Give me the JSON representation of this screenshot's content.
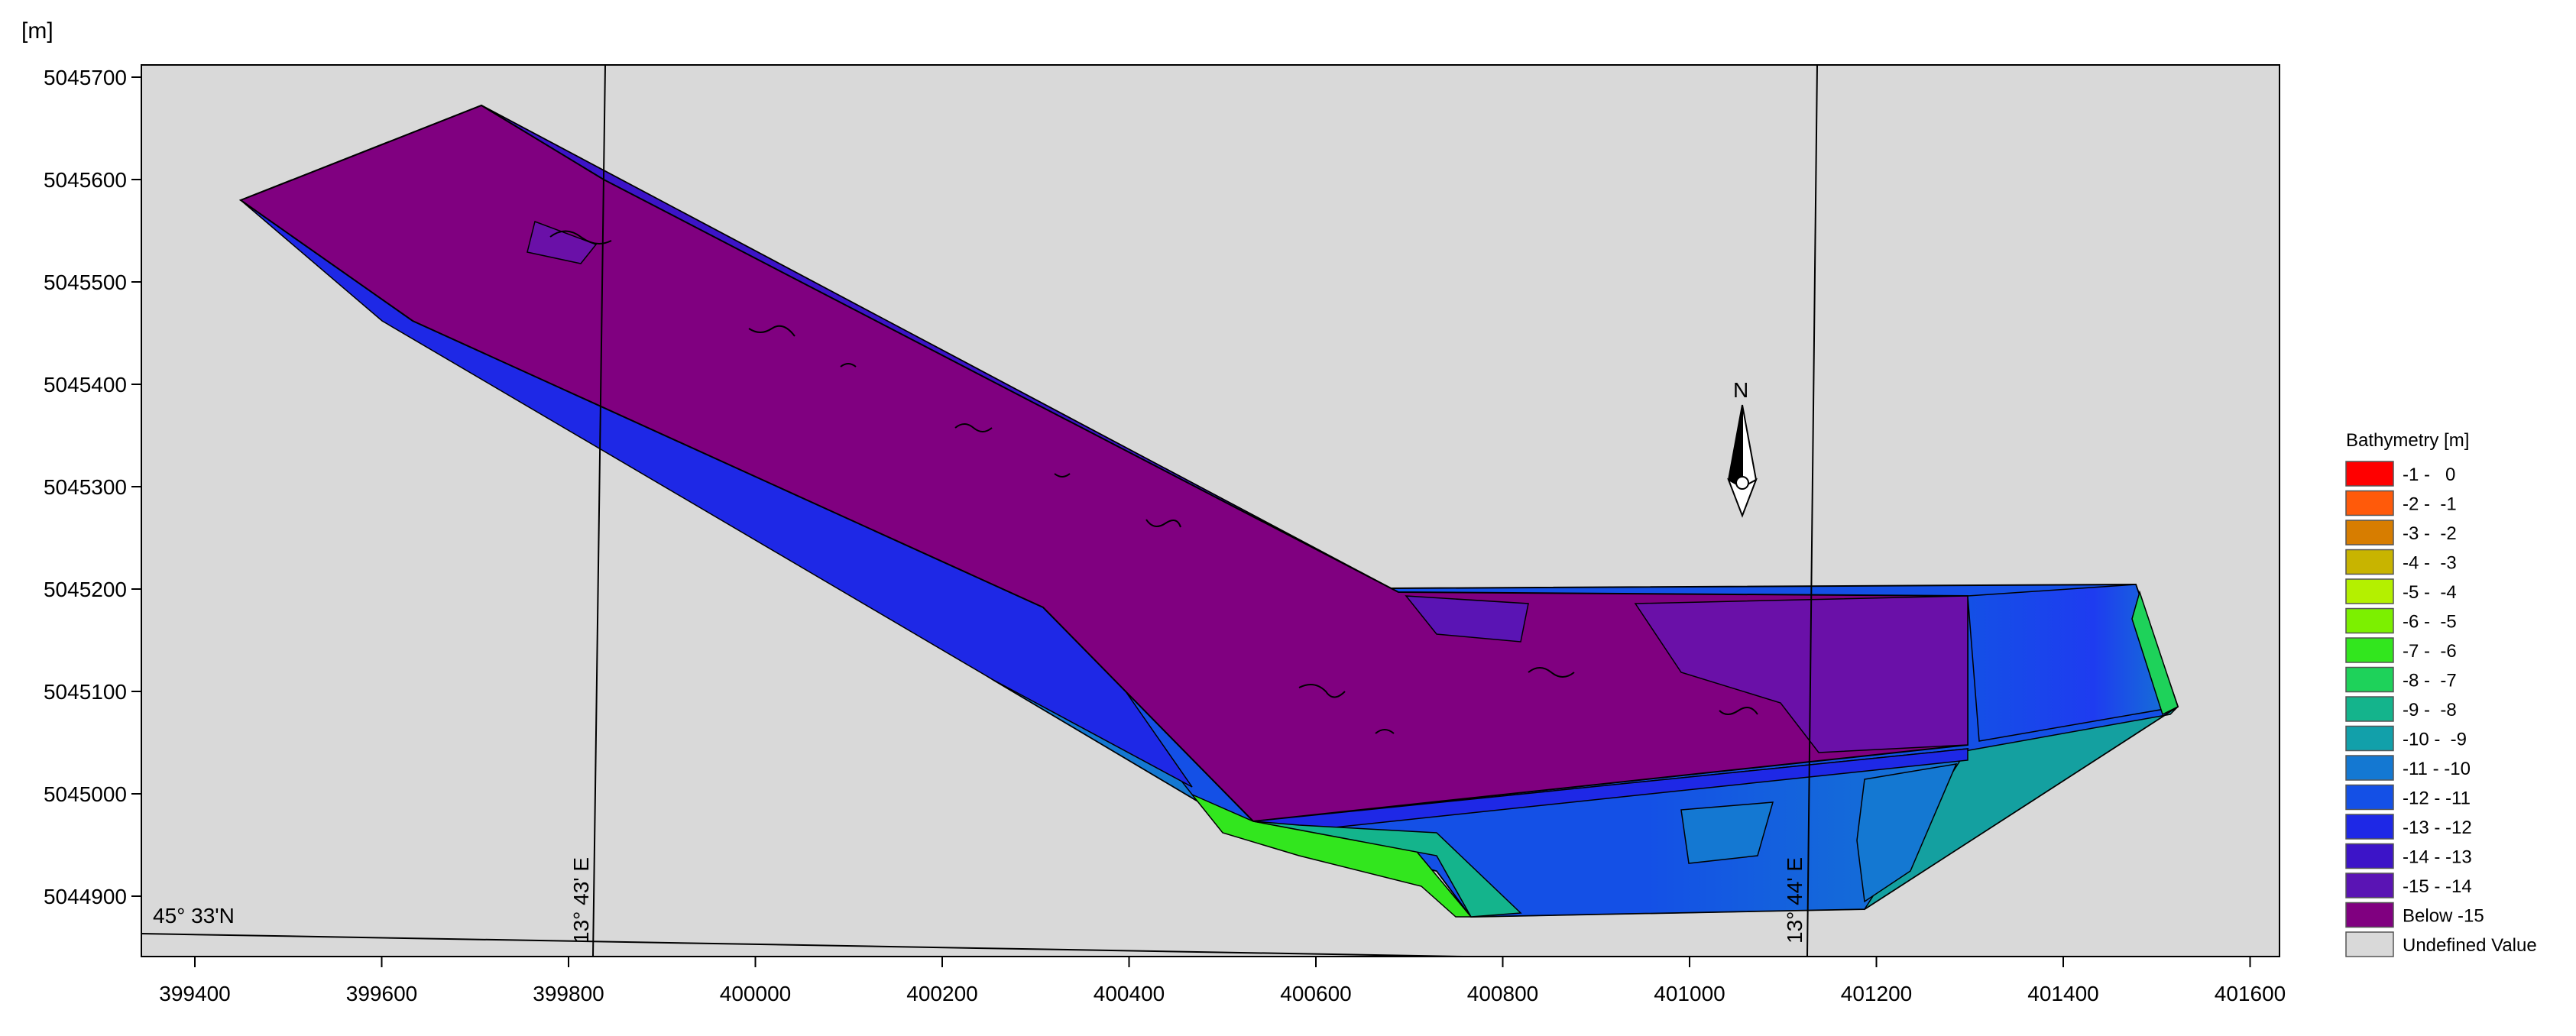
{
  "map": {
    "unit_label": "[m]",
    "y_ticks": [
      "5045700",
      "5045600",
      "5045500",
      "5045400",
      "5045300",
      "5045200",
      "5045100",
      "5045000",
      "5044900"
    ],
    "x_ticks": [
      "399400",
      "399600",
      "399800",
      "400000",
      "400200",
      "400400",
      "400600",
      "400800",
      "401000",
      "401200",
      "401400",
      "401600"
    ],
    "lat_label": "45° 33'N",
    "lon_labels": [
      "13° 43' E",
      "13° 44' E"
    ],
    "north_label": "N",
    "background_color": "#d9d9d9"
  },
  "legend": {
    "title": "Bathymetry [m]",
    "items": [
      {
        "label": "-1 -   0",
        "color": "#ff0000"
      },
      {
        "label": "-2 -  -1",
        "color": "#ff5a0a"
      },
      {
        "label": "-3 -  -2",
        "color": "#d77d00"
      },
      {
        "label": "-4 -  -3",
        "color": "#c8b400"
      },
      {
        "label": "-5 -  -4",
        "color": "#b4f000"
      },
      {
        "label": "-6 -  -5",
        "color": "#7cf000"
      },
      {
        "label": "-7 -  -6",
        "color": "#32e61e"
      },
      {
        "label": "-8 -  -7",
        "color": "#1ed25a"
      },
      {
        "label": "-9 -  -8",
        "color": "#14b48c"
      },
      {
        "label": "-10 -  -9",
        "color": "#12a0aa"
      },
      {
        "label": "-11 - -10",
        "color": "#1478d2"
      },
      {
        "label": "-12 - -11",
        "color": "#1450e6"
      },
      {
        "label": "-13 - -12",
        "color": "#1e28e6"
      },
      {
        "label": "-14 - -13",
        "color": "#3c14c8"
      },
      {
        "label": "-15 - -14",
        "color": "#5a14b4"
      },
      {
        "label": "Below -15",
        "color": "#800080"
      },
      {
        "label": "Undefined Value",
        "color": "#d9d9d9"
      }
    ]
  }
}
